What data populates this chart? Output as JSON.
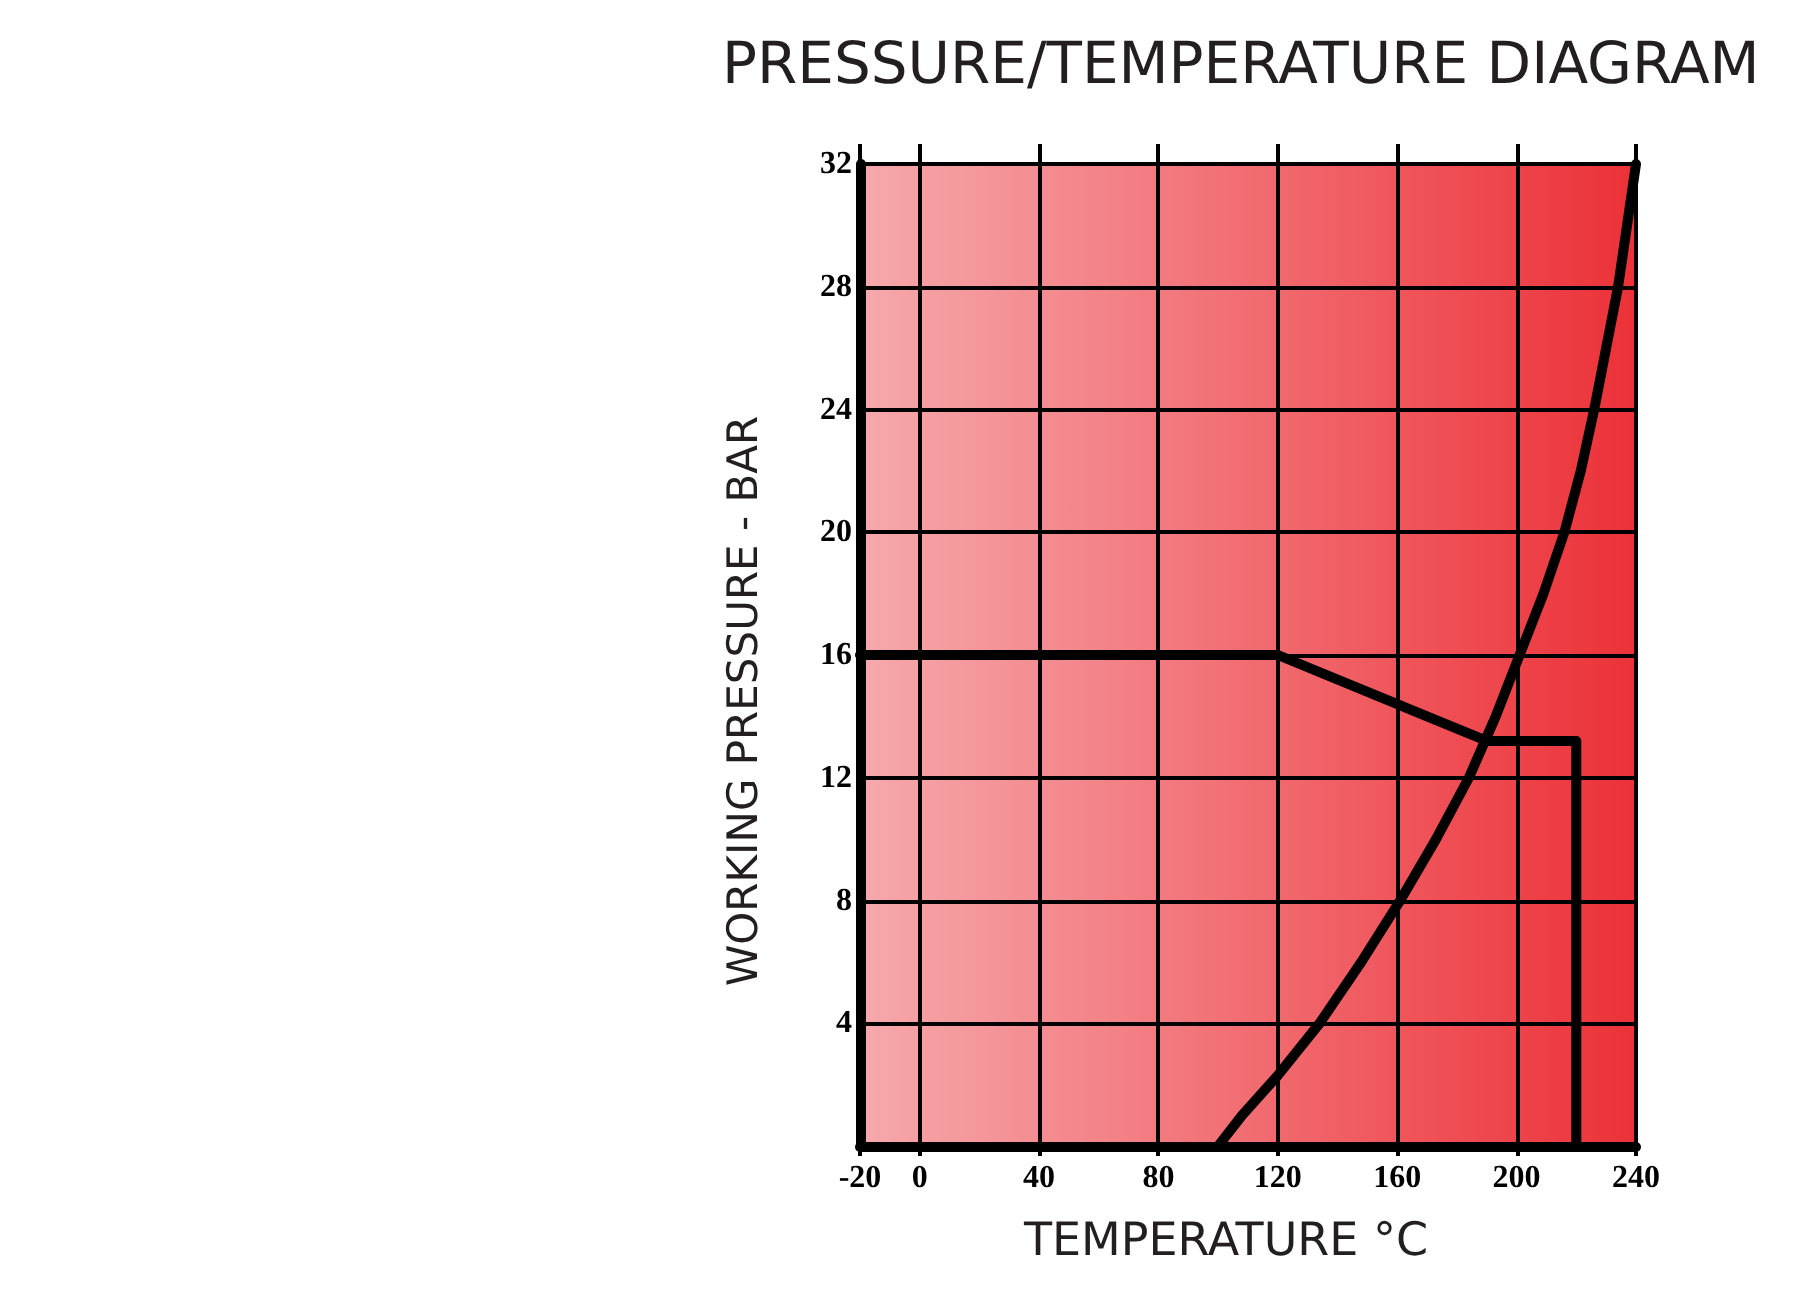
{
  "chart_data": {
    "type": "line",
    "title": "PRESSURE/TEMPERATURE DIAGRAM",
    "xlabel": "TEMPERATURE °C",
    "ylabel": "WORKING PRESSURE - BAR",
    "series": [
      {
        "color": "#000000",
        "x": [
          -20,
          120,
          190,
          220,
          220
        ],
        "values": [
          16,
          16,
          13.2,
          13.2,
          0
        ]
      },
      {
        "color": "#000000",
        "x": [
          100,
          108,
          120,
          134,
          148,
          161,
          173,
          184,
          193,
          201,
          209,
          216,
          221.5,
          226,
          230,
          234,
          237,
          240
        ],
        "values": [
          0,
          1,
          2.3,
          4,
          6,
          8,
          10,
          12,
          14,
          16,
          18,
          20,
          22,
          24,
          26,
          28,
          30,
          32
        ]
      }
    ],
    "xlim": [
      -20,
      240
    ],
    "ylim": [
      0,
      32
    ],
    "xticks": [
      -20,
      0,
      40,
      80,
      120,
      160,
      200,
      240
    ],
    "yticks": [
      4,
      8,
      12,
      16,
      20,
      24,
      28,
      32
    ],
    "grid": true,
    "marker": "none",
    "line_style": "solid"
  }
}
